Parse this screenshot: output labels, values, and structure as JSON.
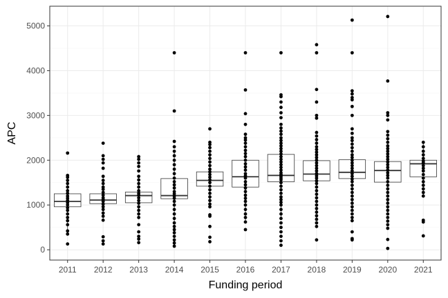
{
  "chart_data": {
    "type": "box",
    "xlabel": "Funding period",
    "ylabel": "APC",
    "ylim": [
      -230,
      5440
    ],
    "yticks": [
      0,
      1000,
      2000,
      3000,
      4000,
      5000
    ],
    "yminor": [
      500,
      1500,
      2500,
      3500,
      4500
    ],
    "categories": [
      "2011",
      "2012",
      "2013",
      "2014",
      "2015",
      "2016",
      "2017",
      "2018",
      "2019",
      "2020",
      "2021"
    ],
    "grid": true,
    "colors": {
      "panel_border": "#333333",
      "grid_major": "#ebebeb",
      "grid_minor": "#f5f5f5",
      "box_fill": "#ffffff",
      "box_stroke": "#333333",
      "points": "#000000"
    },
    "boxes": [
      {
        "category": "2011",
        "q1": 960,
        "median": 1080,
        "q3": 1250,
        "whisker_low": 400,
        "whisker_high": 1650,
        "points": [
          130,
          350,
          420,
          560,
          650,
          720,
          800,
          880,
          940,
          1000,
          1050,
          1100,
          1150,
          1200,
          1260,
          1320,
          1400,
          1480,
          1550,
          1620,
          1660,
          2160
        ]
      },
      {
        "category": "2012",
        "q1": 1030,
        "median": 1110,
        "q3": 1250,
        "whisker_low": 650,
        "whisker_high": 1650,
        "points": [
          130,
          200,
          290,
          660,
          750,
          820,
          900,
          960,
          1020,
          1080,
          1120,
          1160,
          1220,
          1280,
          1350,
          1400,
          1480,
          1550,
          1640,
          1820,
          1940,
          2020,
          2100,
          2380
        ]
      },
      {
        "category": "2013",
        "q1": 1050,
        "median": 1210,
        "q3": 1290,
        "whisker_low": 700,
        "whisker_high": 1650,
        "points": [
          160,
          240,
          300,
          400,
          560,
          720,
          800,
          880,
          960,
          1040,
          1100,
          1160,
          1220,
          1260,
          1320,
          1400,
          1480,
          1560,
          1640,
          1760,
          1860,
          1940,
          2020,
          2080
        ]
      },
      {
        "category": "2014",
        "q1": 1140,
        "median": 1210,
        "q3": 1590,
        "whisker_low": 600,
        "whisker_high": 2200,
        "points": [
          80,
          150,
          220,
          300,
          380,
          450,
          520,
          600,
          700,
          800,
          900,
          1000,
          1080,
          1150,
          1200,
          1250,
          1300,
          1380,
          1450,
          1520,
          1600,
          1700,
          1800,
          1900,
          2000,
          2100,
          2200,
          2300,
          2420,
          3100,
          4400
        ]
      },
      {
        "category": "2015",
        "q1": 1420,
        "median": 1550,
        "q3": 1740,
        "whisker_low": 950,
        "whisker_high": 2200,
        "points": [
          180,
          280,
          520,
          750,
          780,
          960,
          1020,
          1100,
          1180,
          1260,
          1340,
          1420,
          1500,
          1560,
          1620,
          1680,
          1740,
          1800,
          1880,
          1960,
          2040,
          2120,
          2200,
          2280,
          2350,
          2400,
          2700
        ]
      },
      {
        "category": "2016",
        "q1": 1400,
        "median": 1630,
        "q3": 2000,
        "whisker_low": 600,
        "whisker_high": 2500,
        "points": [
          450,
          620,
          720,
          800,
          900,
          1000,
          1080,
          1150,
          1220,
          1300,
          1380,
          1450,
          1520,
          1600,
          1650,
          1700,
          1780,
          1850,
          1920,
          2000,
          2080,
          2150,
          2220,
          2300,
          2380,
          2450,
          2500,
          2580,
          2800,
          3040,
          3570,
          4400
        ]
      },
      {
        "category": "2017",
        "q1": 1520,
        "median": 1660,
        "q3": 2130,
        "whisker_low": 700,
        "whisker_high": 2700,
        "points": [
          100,
          200,
          300,
          400,
          500,
          600,
          700,
          800,
          900,
          1000,
          1060,
          1120,
          1180,
          1260,
          1340,
          1420,
          1500,
          1560,
          1600,
          1640,
          1680,
          1720,
          1780,
          1840,
          1900,
          1960,
          2020,
          2080,
          2140,
          2200,
          2260,
          2320,
          2380,
          2440,
          2500,
          2580,
          2650,
          2720,
          2800,
          2950,
          3060,
          3180,
          3300,
          3420,
          3460,
          4400
        ]
      },
      {
        "category": "2018",
        "q1": 1540,
        "median": 1690,
        "q3": 1990,
        "whisker_low": 700,
        "whisker_high": 2500,
        "points": [
          220,
          520,
          600,
          680,
          760,
          840,
          920,
          1000,
          1080,
          1160,
          1240,
          1320,
          1400,
          1480,
          1540,
          1600,
          1650,
          1700,
          1760,
          1820,
          1880,
          1940,
          2000,
          2060,
          2120,
          2180,
          2240,
          2300,
          2380,
          2460,
          2540,
          2620,
          2940,
          3000,
          3300,
          3580,
          4400,
          4580
        ]
      },
      {
        "category": "2019",
        "q1": 1590,
        "median": 1730,
        "q3": 2010,
        "whisker_low": 900,
        "whisker_high": 2500,
        "points": [
          220,
          250,
          400,
          650,
          720,
          800,
          880,
          960,
          1040,
          1120,
          1200,
          1280,
          1360,
          1440,
          1520,
          1580,
          1640,
          1700,
          1760,
          1820,
          1880,
          1940,
          2000,
          2060,
          2120,
          2200,
          2280,
          2360,
          2440,
          2500,
          2600,
          2700,
          3000,
          3200,
          3350,
          3400,
          3480,
          3550,
          4400,
          5130
        ]
      },
      {
        "category": "2020",
        "q1": 1510,
        "median": 1770,
        "q3": 1970,
        "whisker_low": 800,
        "whisker_high": 2600,
        "points": [
          30,
          230,
          480,
          560,
          640,
          720,
          800,
          880,
          960,
          1040,
          1120,
          1200,
          1280,
          1360,
          1440,
          1520,
          1600,
          1660,
          1720,
          1780,
          1840,
          1900,
          1960,
          2020,
          2080,
          2140,
          2200,
          2260,
          2320,
          2400,
          2480,
          2560,
          2640,
          2900,
          3000,
          3060,
          3770,
          5210
        ]
      },
      {
        "category": "2021",
        "q1": 1630,
        "median": 1920,
        "q3": 2000,
        "whisker_low": 1200,
        "whisker_high": 2400,
        "points": [
          310,
          620,
          660,
          1200,
          1280,
          1360,
          1440,
          1520,
          1600,
          1680,
          1760,
          1820,
          1880,
          1940,
          1980,
          2040,
          2120,
          2200,
          2300,
          2400
        ]
      }
    ]
  }
}
